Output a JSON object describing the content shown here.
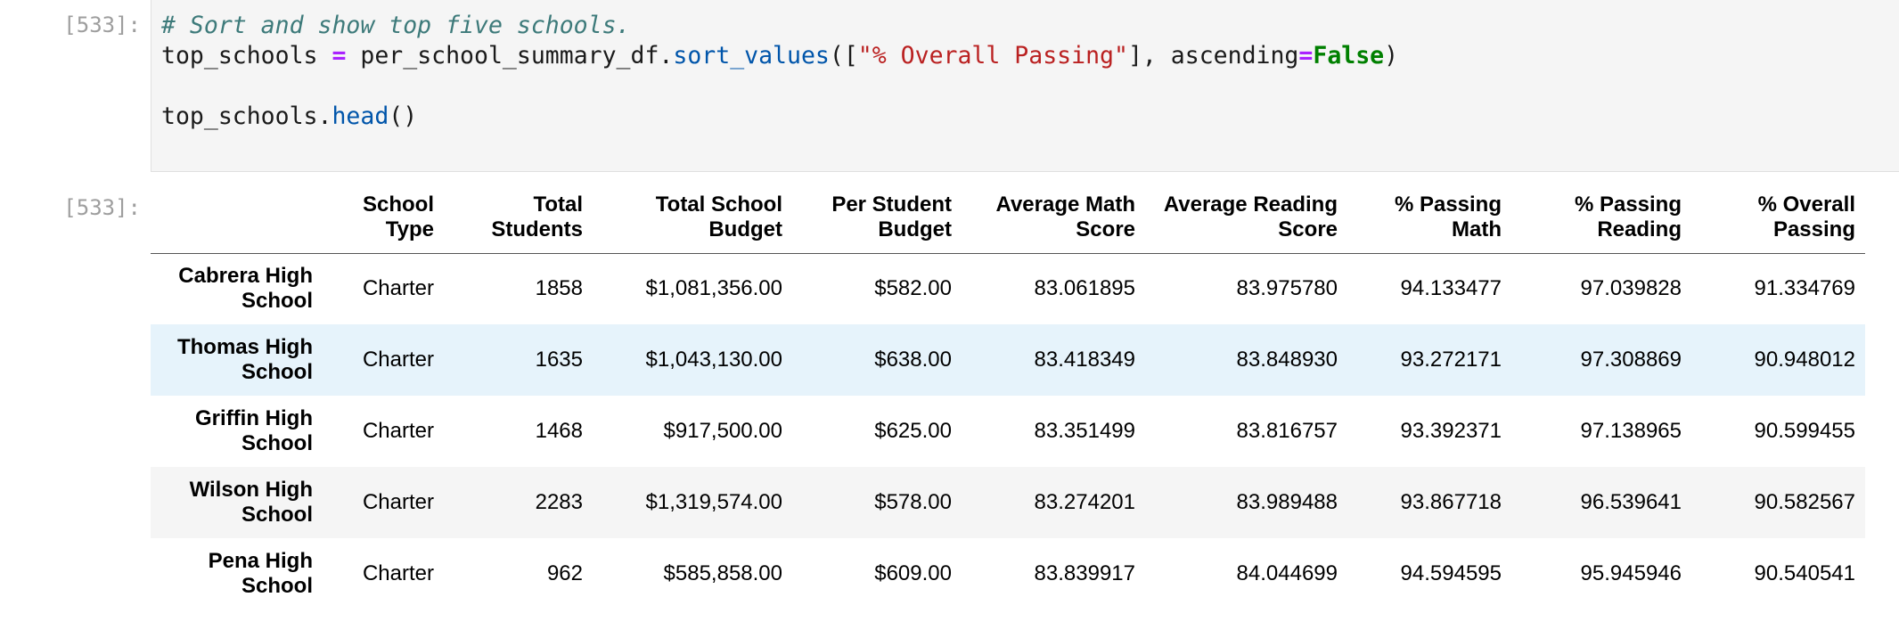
{
  "code_cell": {
    "prompt": "[533]:",
    "comment": "# Sort and show top five schools.",
    "line2": {
      "var": "top_schools ",
      "eq": "=",
      "obj": " per_school_summary_df.",
      "method": "sort_values",
      "open": "([",
      "arg": "\"% Overall Passing\"",
      "mid": "], ascending",
      "eq2": "=",
      "kw": "False",
      "close": ")"
    },
    "line4": {
      "obj": "top_schools.",
      "method": "head",
      "call": "()"
    }
  },
  "output_cell": {
    "prompt": "[533]:",
    "columns": [
      [
        "School",
        "Type"
      ],
      [
        "Total",
        "Students"
      ],
      [
        "Total School",
        "Budget"
      ],
      [
        "Per Student",
        "Budget"
      ],
      [
        "Average Math",
        "Score"
      ],
      [
        "Average Reading",
        "Score"
      ],
      [
        "% Passing",
        "Math"
      ],
      [
        "% Passing",
        "Reading"
      ],
      [
        "% Overall",
        "Passing"
      ]
    ],
    "rows": [
      {
        "index": [
          "Cabrera High",
          "School"
        ],
        "cells": [
          "Charter",
          "1858",
          "$1,081,356.00",
          "$582.00",
          "83.061895",
          "83.975780",
          "94.133477",
          "97.039828",
          "91.334769"
        ]
      },
      {
        "index": [
          "Thomas High",
          "School"
        ],
        "cells": [
          "Charter",
          "1635",
          "$1,043,130.00",
          "$638.00",
          "83.418349",
          "83.848930",
          "93.272171",
          "97.308869",
          "90.948012"
        ]
      },
      {
        "index": [
          "Griffin High",
          "School"
        ],
        "cells": [
          "Charter",
          "1468",
          "$917,500.00",
          "$625.00",
          "83.351499",
          "83.816757",
          "93.392371",
          "97.138965",
          "90.599455"
        ]
      },
      {
        "index": [
          "Wilson High",
          "School"
        ],
        "cells": [
          "Charter",
          "2283",
          "$1,319,574.00",
          "$578.00",
          "83.274201",
          "83.989488",
          "93.867718",
          "96.539641",
          "90.582567"
        ]
      },
      {
        "index": [
          "Pena High",
          "School"
        ],
        "cells": [
          "Charter",
          "962",
          "$585,858.00",
          "$609.00",
          "83.839917",
          "84.044699",
          "94.594595",
          "95.945946",
          "90.540541"
        ]
      }
    ]
  }
}
